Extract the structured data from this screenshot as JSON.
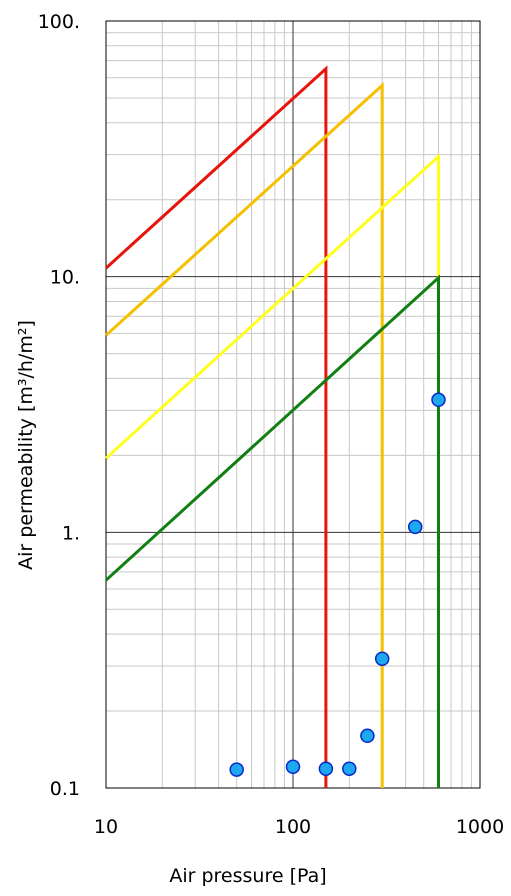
{
  "chart_data": {
    "type": "line",
    "title": "",
    "xlabel": "Air pressure [Pa]",
    "ylabel": "Air permeability [m³/h/m²]",
    "x_scale": "log",
    "y_scale": "log",
    "xlim": [
      10,
      1000
    ],
    "ylim": [
      0.1,
      100
    ],
    "grid": true,
    "x_ticks": [
      {
        "value": 10,
        "label": "10"
      },
      {
        "value": 100,
        "label": "100"
      },
      {
        "value": 1000,
        "label": "1000"
      }
    ],
    "y_ticks": [
      {
        "value": 0.1,
        "label": "0.1"
      },
      {
        "value": 1,
        "label": "1."
      },
      {
        "value": 10,
        "label": "10."
      },
      {
        "value": 100,
        "label": "100."
      }
    ],
    "series": [
      {
        "color": "#e8140c",
        "points": [
          [
            10,
            10.8
          ],
          [
            150,
            65
          ],
          [
            150,
            0.1
          ]
        ]
      },
      {
        "color": "#f5c000",
        "points": [
          [
            10,
            5.9
          ],
          [
            300,
            56
          ],
          [
            300,
            0.1
          ]
        ]
      },
      {
        "color": "#ffff1e",
        "points": [
          [
            10,
            1.95
          ],
          [
            600,
            29.5
          ],
          [
            600,
            0.1
          ]
        ]
      },
      {
        "color": "#127f12",
        "points": [
          [
            10,
            0.65
          ],
          [
            600,
            9.9
          ],
          [
            600,
            0.1
          ]
        ]
      }
    ],
    "scatter": {
      "fill": "#1ea8f0",
      "stroke": "#0a28c8",
      "points": [
        [
          50,
          0.118
        ],
        [
          100,
          0.121
        ],
        [
          150,
          0.119
        ],
        [
          200,
          0.119
        ],
        [
          250,
          0.16
        ],
        [
          300,
          0.32
        ],
        [
          450,
          1.05
        ],
        [
          600,
          3.3
        ]
      ]
    }
  }
}
